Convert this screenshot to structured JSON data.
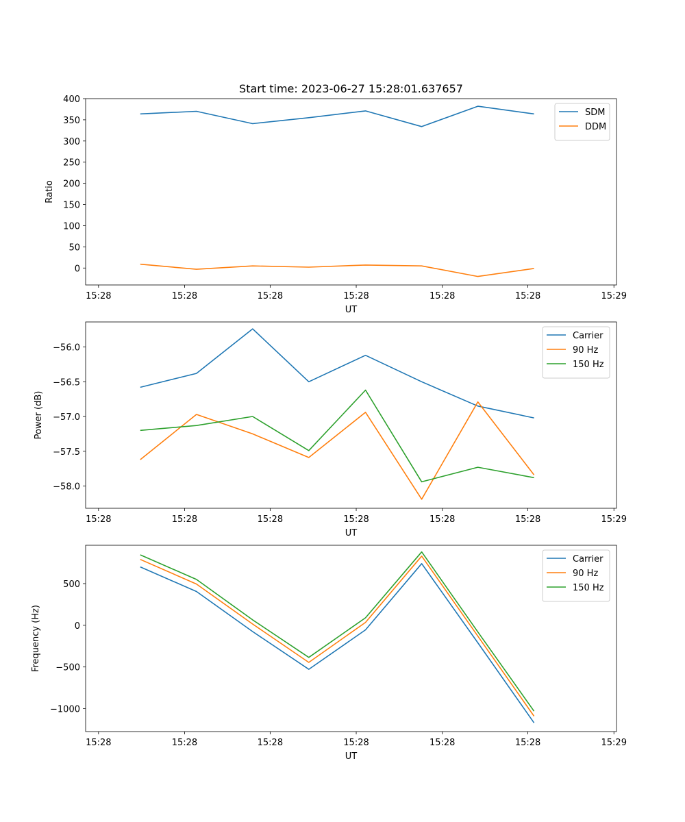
{
  "chart_data": [
    {
      "type": "line",
      "title": "Start time: 2023-06-27 15:28:01.637657",
      "xlabel": "UT",
      "ylabel": "Ratio",
      "x_ticks": [
        "15:28",
        "15:28",
        "15:28",
        "15:28",
        "15:28",
        "15:28",
        "15:29"
      ],
      "x_tick_positions": [
        0,
        0.167,
        0.333,
        0.5,
        0.667,
        0.833,
        1.0
      ],
      "x": [
        0.081,
        0.19,
        0.299,
        0.408,
        0.518,
        0.627,
        0.736,
        0.845
      ],
      "xlim": [
        -0.025,
        1.005
      ],
      "y_ticks": [
        0,
        50,
        100,
        150,
        200,
        250,
        300,
        350,
        400
      ],
      "ylim": [
        -40,
        400
      ],
      "legend_position": "upper right",
      "series": [
        {
          "name": "SDM",
          "color": "#1f77b4",
          "values": [
            364,
            370,
            341,
            355,
            371,
            334,
            382,
            364
          ]
        },
        {
          "name": "DDM",
          "color": "#ff7f0e",
          "values": [
            9,
            -3,
            5,
            2,
            7,
            5,
            -20,
            -1
          ]
        }
      ]
    },
    {
      "type": "line",
      "xlabel": "UT",
      "ylabel": "Power (dB)",
      "x_ticks": [
        "15:28",
        "15:28",
        "15:28",
        "15:28",
        "15:28",
        "15:28",
        "15:29"
      ],
      "x_tick_positions": [
        0,
        0.167,
        0.333,
        0.5,
        0.667,
        0.833,
        1.0
      ],
      "x": [
        0.081,
        0.19,
        0.299,
        0.408,
        0.518,
        0.627,
        0.736,
        0.845
      ],
      "xlim": [
        -0.025,
        1.005
      ],
      "y_ticks": [
        -58.0,
        -57.5,
        -57.0,
        -56.5,
        -56.0
      ],
      "y_tick_labels": [
        "−58.0",
        "−57.5",
        "−57.0",
        "−56.5",
        "−56.0"
      ],
      "ylim": [
        -58.32,
        -55.64
      ],
      "legend_position": "upper right",
      "series": [
        {
          "name": "Carrier",
          "color": "#1f77b4",
          "values": [
            -56.58,
            -56.38,
            -55.74,
            -56.5,
            -56.12,
            -56.5,
            -56.85,
            -57.02
          ]
        },
        {
          "name": "90 Hz",
          "color": "#ff7f0e",
          "values": [
            -57.62,
            -56.97,
            -57.25,
            -57.59,
            -56.94,
            -58.19,
            -56.79,
            -57.84
          ]
        },
        {
          "name": "150 Hz",
          "color": "#2ca02c",
          "values": [
            -57.2,
            -57.13,
            -57.0,
            -57.49,
            -56.62,
            -57.94,
            -57.73,
            -57.88
          ]
        }
      ]
    },
    {
      "type": "line",
      "xlabel": "UT",
      "ylabel": "Frequency (Hz)",
      "x_ticks": [
        "15:28",
        "15:28",
        "15:28",
        "15:28",
        "15:28",
        "15:28",
        "15:29"
      ],
      "x_tick_positions": [
        0,
        0.167,
        0.333,
        0.5,
        0.667,
        0.833,
        1.0
      ],
      "x": [
        0.081,
        0.19,
        0.299,
        0.408,
        0.518,
        0.627,
        0.736,
        0.845
      ],
      "xlim": [
        -0.025,
        1.005
      ],
      "y_ticks": [
        -1000,
        -500,
        0,
        500
      ],
      "y_tick_labels": [
        "−1000",
        "−500",
        "0",
        "500"
      ],
      "ylim": [
        -1275,
        960
      ],
      "legend_position": "upper right",
      "series": [
        {
          "name": "Carrier",
          "color": "#1f77b4",
          "values": [
            700,
            405,
            -75,
            -528,
            -55,
            740,
            -210,
            -1170
          ]
        },
        {
          "name": "90 Hz",
          "color": "#ff7f0e",
          "values": [
            790,
            495,
            15,
            -445,
            35,
            830,
            -130,
            -1090
          ]
        },
        {
          "name": "150 Hz",
          "color": "#2ca02c",
          "values": [
            845,
            550,
            65,
            -385,
            90,
            880,
            -80,
            -1030
          ]
        }
      ]
    }
  ]
}
